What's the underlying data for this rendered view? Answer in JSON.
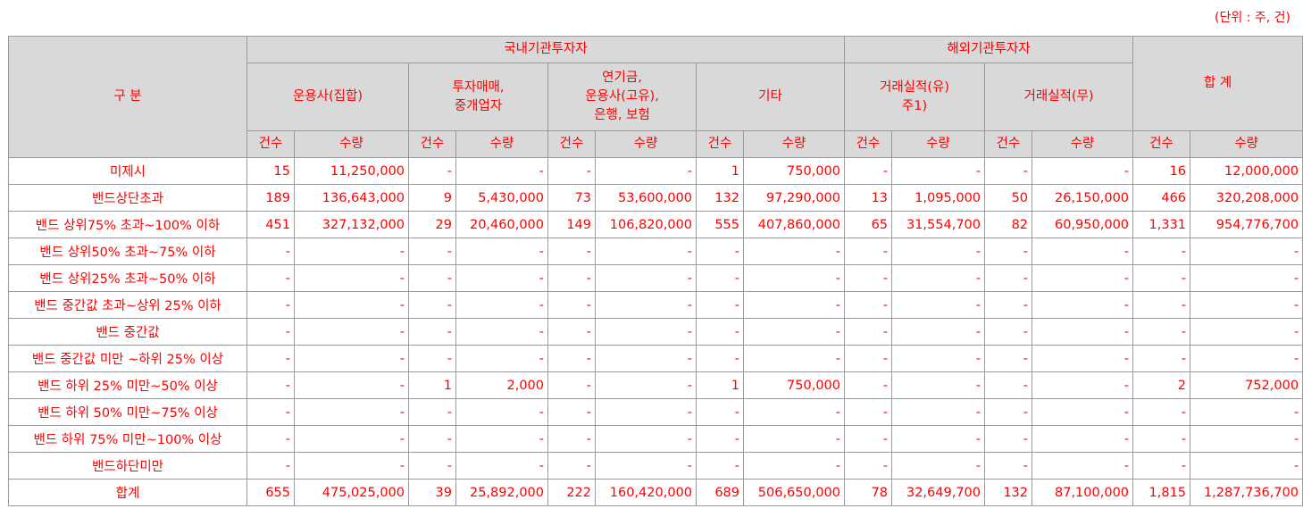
{
  "unit_note": "(단위 : 주, 건)",
  "header": {
    "category": "구 분",
    "domestic": "국내기관투자자",
    "foreign": "해외기관투자자",
    "total": "합 계",
    "groups": [
      "운용사(집합)",
      "투자매매,\n중개업자",
      "연기금,\n운용사(고유),\n은행, 보험",
      "기타",
      "거래실적(유)\n주1)",
      "거래실적(무)"
    ],
    "count": "건수",
    "qty": "수량"
  },
  "rows": [
    {
      "label": "미제시",
      "values": [
        "15",
        "11,250,000",
        "-",
        "-",
        "-",
        "-",
        "1",
        "750,000",
        "-",
        "-",
        "-",
        "-",
        "16",
        "12,000,000"
      ]
    },
    {
      "label": "밴드상단초과",
      "values": [
        "189",
        "136,643,000",
        "9",
        "5,430,000",
        "73",
        "53,600,000",
        "132",
        "97,290,000",
        "13",
        "1,095,000",
        "50",
        "26,150,000",
        "466",
        "320,208,000"
      ]
    },
    {
      "label": "밴드 상위75% 초과~100% 이하",
      "values": [
        "451",
        "327,132,000",
        "29",
        "20,460,000",
        "149",
        "106,820,000",
        "555",
        "407,860,000",
        "65",
        "31,554,700",
        "82",
        "60,950,000",
        "1,331",
        "954,776,700"
      ]
    },
    {
      "label": "밴드 상위50% 초과~75% 이하",
      "values": [
        "-",
        "-",
        "-",
        "-",
        "-",
        "-",
        "-",
        "-",
        "-",
        "-",
        "-",
        "-",
        "-",
        "-"
      ]
    },
    {
      "label": "밴드 상위25% 초과~50% 이하",
      "values": [
        "-",
        "-",
        "-",
        "-",
        "-",
        "-",
        "-",
        "-",
        "-",
        "-",
        "-",
        "-",
        "-",
        "-"
      ]
    },
    {
      "label": "밴드 중간값 초과~상위 25% 이하",
      "values": [
        "-",
        "-",
        "-",
        "-",
        "-",
        "-",
        "-",
        "-",
        "-",
        "-",
        "-",
        "-",
        "-",
        "-"
      ]
    },
    {
      "label": "밴드 중간값",
      "values": [
        "-",
        "-",
        "-",
        "-",
        "-",
        "-",
        "-",
        "-",
        "-",
        "-",
        "-",
        "-",
        "-",
        "-"
      ]
    },
    {
      "label": "밴드 중간값 미만 ~하위 25% 이상",
      "values": [
        "-",
        "-",
        "-",
        "-",
        "-",
        "-",
        "-",
        "-",
        "-",
        "-",
        "-",
        "-",
        "-",
        "-"
      ]
    },
    {
      "label": "밴드 하위 25% 미만~50% 이상",
      "values": [
        "-",
        "-",
        "1",
        "2,000",
        "-",
        "-",
        "1",
        "750,000",
        "-",
        "-",
        "-",
        "-",
        "2",
        "752,000"
      ]
    },
    {
      "label": "밴드 하위 50% 미만~75% 이상",
      "values": [
        "-",
        "-",
        "-",
        "-",
        "-",
        "-",
        "-",
        "-",
        "-",
        "-",
        "-",
        "-",
        "-",
        "-"
      ]
    },
    {
      "label": "밴드 하위 75% 미만~100% 이상",
      "values": [
        "-",
        "-",
        "-",
        "-",
        "-",
        "-",
        "-",
        "-",
        "-",
        "-",
        "-",
        "-",
        "-",
        "-"
      ]
    },
    {
      "label": "밴드하단미만",
      "values": [
        "-",
        "-",
        "-",
        "-",
        "-",
        "-",
        "-",
        "-",
        "-",
        "-",
        "-",
        "-",
        "-",
        "-"
      ]
    },
    {
      "label": "합계",
      "values": [
        "655",
        "475,025,000",
        "39",
        "25,892,000",
        "222",
        "160,420,000",
        "689",
        "506,650,000",
        "78",
        "32,649,700",
        "132",
        "87,100,000",
        "1,815",
        "1,287,736,700"
      ]
    }
  ]
}
